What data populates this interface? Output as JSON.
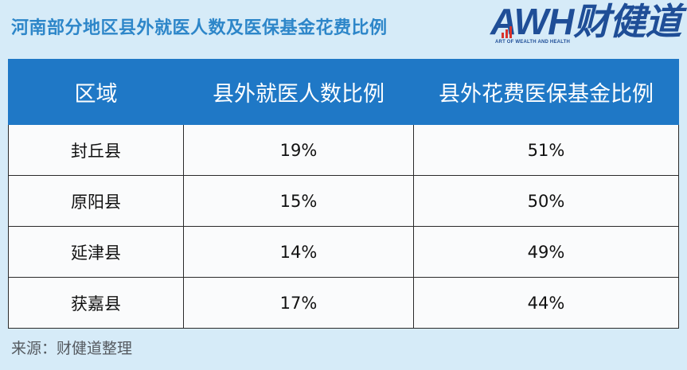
{
  "header": {
    "title": "河南部分地区县外就医人数及医保基金花费比例",
    "logo": {
      "brand": "AWH财健道",
      "tagline": "ART OF WEALTH AND HEALTH"
    }
  },
  "colors": {
    "page_background": "#d6ebf8",
    "title": "#2d86c9",
    "header_row": "#1f78c6",
    "logo": "#1f4e97"
  },
  "chart_data": {
    "type": "table",
    "title": "河南部分地区县外就医人数及医保基金花费比例",
    "columns": [
      "区域",
      "县外就医人数比例",
      "县外花费医保基金比例"
    ],
    "rows": [
      [
        "封丘县",
        "19%",
        "51%"
      ],
      [
        "原阳县",
        "15%",
        "50%"
      ],
      [
        "延津县",
        "14%",
        "49%"
      ],
      [
        "获嘉县",
        "17%",
        "44%"
      ]
    ]
  },
  "source": "来源：财健道整理"
}
